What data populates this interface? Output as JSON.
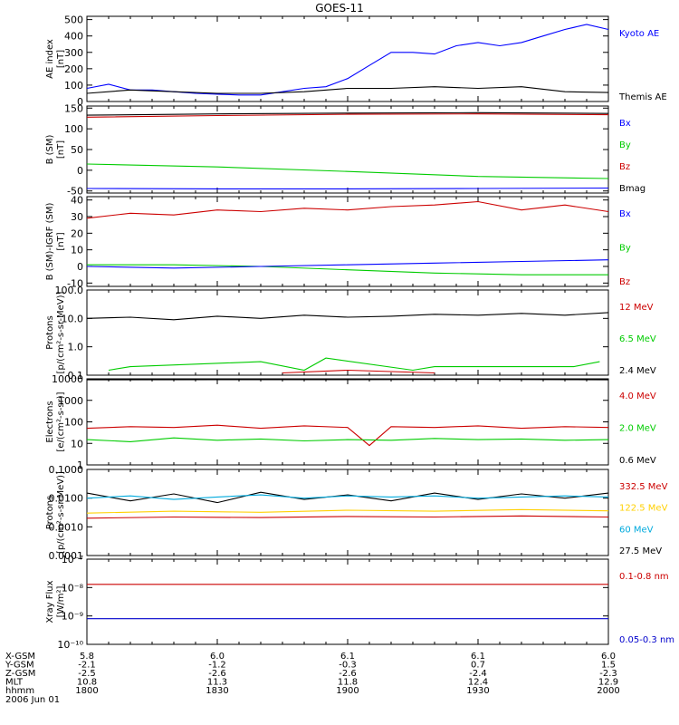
{
  "title": "GOES-11",
  "time_axis": {
    "start_min": 1800,
    "end_min": 2000,
    "rows": [
      {
        "label": "X-GSM",
        "values": [
          "5.8",
          "6.0",
          "6.1",
          "6.1",
          "6.0"
        ]
      },
      {
        "label": "Y-GSM",
        "values": [
          "-2.1",
          "-1.2",
          "-0.3",
          "0.7",
          "1.5"
        ]
      },
      {
        "label": "Z-GSM",
        "values": [
          "-2.5",
          "-2.6",
          "-2.6",
          "-2.4",
          "-2.3"
        ]
      },
      {
        "label": "MLT",
        "values": [
          "10.8",
          "11.3",
          "11.8",
          "12.4",
          "12.9"
        ]
      },
      {
        "label": "hhmm",
        "values": [
          "1800",
          "1830",
          "1900",
          "1930",
          "2000"
        ]
      }
    ],
    "date": "2006 Jun 01"
  },
  "chart_data": [
    {
      "type": "line",
      "ylabel": [
        "AE index",
        "[nT]"
      ],
      "yscale": "linear",
      "ylim": [
        0,
        520
      ],
      "yticks": [
        {
          "v": 0,
          "t": "0"
        },
        {
          "v": 100,
          "t": "100"
        },
        {
          "v": 200,
          "t": "200"
        },
        {
          "v": 300,
          "t": "300"
        },
        {
          "v": 400,
          "t": "400"
        },
        {
          "v": 500,
          "t": "500"
        }
      ],
      "legend": [
        {
          "name": "Kyoto AE",
          "color": "#0000ff"
        },
        {
          "name": "Themis AE",
          "color": "#000000"
        }
      ],
      "series": [
        {
          "name": "Kyoto AE",
          "color": "#0000ff",
          "x": [
            0,
            5,
            10,
            15,
            20,
            25,
            30,
            35,
            40,
            45,
            50,
            55,
            60,
            65,
            70,
            75,
            80,
            85,
            90,
            95,
            100,
            105,
            110,
            115,
            120
          ],
          "y": [
            80,
            105,
            70,
            70,
            60,
            50,
            45,
            40,
            40,
            60,
            80,
            90,
            140,
            220,
            300,
            300,
            290,
            340,
            360,
            340,
            360,
            400,
            440,
            470,
            440
          ]
        },
        {
          "name": "Themis AE",
          "color": "#000000",
          "x": [
            0,
            10,
            20,
            30,
            40,
            50,
            60,
            70,
            80,
            90,
            100,
            110,
            120
          ],
          "y": [
            50,
            70,
            60,
            50,
            50,
            60,
            80,
            80,
            90,
            80,
            90,
            60,
            55
          ]
        }
      ]
    },
    {
      "type": "line",
      "ylabel": [
        "B (SM)",
        "[nT]"
      ],
      "yscale": "linear",
      "ylim": [
        -55,
        155
      ],
      "yticks": [
        {
          "v": -50,
          "t": "-50"
        },
        {
          "v": 0,
          "t": "0"
        },
        {
          "v": 50,
          "t": "50"
        },
        {
          "v": 100,
          "t": "100"
        },
        {
          "v": 150,
          "t": "150"
        }
      ],
      "legend": [
        {
          "name": "Bx",
          "color": "#0000ff"
        },
        {
          "name": "By",
          "color": "#00cc00"
        },
        {
          "name": "Bz",
          "color": "#cc0000"
        },
        {
          "name": "Bmag",
          "color": "#000000"
        }
      ],
      "series": [
        {
          "name": "Bmag",
          "color": "#000000",
          "x": [
            0,
            30,
            60,
            90,
            120
          ],
          "y": [
            133,
            136,
            138,
            139,
            137
          ]
        },
        {
          "name": "Bz",
          "color": "#cc0000",
          "x": [
            0,
            30,
            60,
            90,
            120
          ],
          "y": [
            128,
            132,
            135,
            136,
            134
          ]
        },
        {
          "name": "By",
          "color": "#00cc00",
          "x": [
            0,
            30,
            60,
            90,
            120
          ],
          "y": [
            15,
            8,
            -3,
            -15,
            -20
          ]
        },
        {
          "name": "Bx",
          "color": "#0000ff",
          "x": [
            0,
            30,
            60,
            90,
            120
          ],
          "y": [
            -44,
            -45,
            -45,
            -44,
            -43
          ]
        }
      ]
    },
    {
      "type": "line",
      "ylabel": [
        "B (SM)-IGRF (SM)",
        "[nT]"
      ],
      "yscale": "linear",
      "ylim": [
        -12,
        42
      ],
      "yticks": [
        {
          "v": -10,
          "t": "-10"
        },
        {
          "v": 0,
          "t": "0"
        },
        {
          "v": 10,
          "t": "10"
        },
        {
          "v": 20,
          "t": "20"
        },
        {
          "v": 30,
          "t": "30"
        },
        {
          "v": 40,
          "t": "40"
        }
      ],
      "legend": [
        {
          "name": "Bx",
          "color": "#0000ff"
        },
        {
          "name": "By",
          "color": "#00cc00"
        },
        {
          "name": "Bz",
          "color": "#cc0000"
        }
      ],
      "series": [
        {
          "name": "Bz",
          "color": "#cc0000",
          "x": [
            0,
            10,
            20,
            30,
            40,
            50,
            60,
            70,
            80,
            90,
            100,
            110,
            120
          ],
          "y": [
            29,
            32,
            31,
            34,
            33,
            35,
            34,
            36,
            37,
            39,
            34,
            37,
            33
          ]
        },
        {
          "name": "By",
          "color": "#00cc00",
          "x": [
            0,
            20,
            40,
            60,
            80,
            100,
            120
          ],
          "y": [
            1,
            1,
            0,
            -2,
            -4,
            -5,
            -5
          ]
        },
        {
          "name": "Bx",
          "color": "#0000ff",
          "x": [
            0,
            20,
            40,
            60,
            80,
            100,
            120
          ],
          "y": [
            0,
            -1,
            0,
            1,
            2,
            3,
            4
          ]
        }
      ]
    },
    {
      "type": "line",
      "ylabel": [
        "Protons",
        "[p/(cm²-s-sr-MeV)]"
      ],
      "yscale": "log",
      "ylim": [
        0.1,
        100
      ],
      "yticks": [
        {
          "v": 0.1,
          "t": "0.1"
        },
        {
          "v": 1,
          "t": "1.0"
        },
        {
          "v": 10,
          "t": "10.0"
        },
        {
          "v": 100,
          "t": "100.0"
        }
      ],
      "legend": [
        {
          "name": "12 MeV",
          "color": "#cc0000"
        },
        {
          "name": "6.5 MeV",
          "color": "#00cc00"
        },
        {
          "name": "2.4 MeV",
          "color": "#000000"
        }
      ],
      "series": [
        {
          "name": "2.4 MeV",
          "color": "#000000",
          "x": [
            0,
            10,
            20,
            30,
            40,
            50,
            60,
            70,
            80,
            90,
            100,
            110,
            120
          ],
          "y": [
            10,
            11,
            9,
            12,
            10,
            13,
            11,
            12,
            14,
            13,
            15,
            13,
            16
          ]
        },
        {
          "name": "6.5 MeV",
          "color": "#00cc00",
          "x": [
            5,
            10,
            40,
            50,
            55,
            75,
            80,
            112,
            118
          ],
          "y": [
            0.15,
            0.2,
            0.3,
            0.15,
            0.4,
            0.15,
            0.2,
            0.2,
            0.3
          ]
        },
        {
          "name": "12 MeV",
          "color": "#cc0000",
          "x": [
            45,
            60,
            80
          ],
          "y": [
            0.12,
            0.15,
            0.12
          ]
        }
      ]
    },
    {
      "type": "line",
      "ylabel": [
        "Electrons",
        "[e/(cm²-s-sr)]"
      ],
      "yscale": "log",
      "ylim": [
        1,
        10000
      ],
      "yticks": [
        {
          "v": 1,
          "t": "1"
        },
        {
          "v": 10,
          "t": "10"
        },
        {
          "v": 100,
          "t": "100"
        },
        {
          "v": 1000,
          "t": "1000"
        },
        {
          "v": 10000,
          "t": "10000"
        }
      ],
      "legend": [
        {
          "name": "4.0 MeV",
          "color": "#cc0000"
        },
        {
          "name": "2.0 MeV",
          "color": "#00cc00"
        },
        {
          "name": "0.6 MeV",
          "color": "#000000"
        }
      ],
      "series": [
        {
          "name": "0.6 MeV",
          "color": "#000000",
          "x": [
            0,
            30,
            60,
            90,
            120
          ],
          "y": [
            9000,
            9200,
            9100,
            9300,
            9000
          ]
        },
        {
          "name": "4.0 MeV",
          "color": "#cc0000",
          "x": [
            0,
            10,
            20,
            30,
            40,
            50,
            60,
            65,
            70,
            80,
            90,
            100,
            110,
            120
          ],
          "y": [
            50,
            60,
            55,
            70,
            50,
            65,
            55,
            8,
            60,
            55,
            65,
            50,
            60,
            55
          ]
        },
        {
          "name": "2.0 MeV",
          "color": "#00cc00",
          "x": [
            0,
            10,
            20,
            30,
            40,
            50,
            60,
            70,
            80,
            90,
            100,
            110,
            120
          ],
          "y": [
            15,
            12,
            18,
            14,
            16,
            13,
            15,
            14,
            17,
            15,
            16,
            14,
            15
          ]
        }
      ]
    },
    {
      "type": "line",
      "ylabel": [
        "Protons",
        "[p/(cm²-s-sr-MeV)]"
      ],
      "yscale": "log",
      "ylim": [
        0.0001,
        0.1
      ],
      "yticks": [
        {
          "v": 0.0001,
          "t": "0.0001"
        },
        {
          "v": 0.001,
          "t": "0.0010"
        },
        {
          "v": 0.01,
          "t": "0.0100"
        },
        {
          "v": 0.1,
          "t": "0.1000"
        }
      ],
      "legend": [
        {
          "name": "332.5 MeV",
          "color": "#cc0000"
        },
        {
          "name": "122.5 MeV",
          "color": "#ffd000"
        },
        {
          "name": "60 MeV",
          "color": "#00aadd"
        },
        {
          "name": "27.5 MeV",
          "color": "#000000"
        }
      ],
      "series": [
        {
          "name": "27.5 MeV",
          "color": "#000000",
          "x": [
            0,
            10,
            20,
            30,
            40,
            50,
            60,
            70,
            80,
            90,
            100,
            110,
            120
          ],
          "y": [
            0.015,
            0.008,
            0.014,
            0.007,
            0.016,
            0.009,
            0.013,
            0.008,
            0.015,
            0.009,
            0.014,
            0.01,
            0.015
          ]
        },
        {
          "name": "60 MeV",
          "color": "#00aadd",
          "x": [
            0,
            10,
            20,
            30,
            40,
            50,
            60,
            70,
            80,
            90,
            100,
            110,
            120
          ],
          "y": [
            0.01,
            0.012,
            0.009,
            0.011,
            0.013,
            0.01,
            0.012,
            0.011,
            0.012,
            0.01,
            0.011,
            0.012,
            0.011
          ]
        },
        {
          "name": "122.5 MeV",
          "color": "#ffd000",
          "x": [
            0,
            20,
            40,
            60,
            80,
            100,
            120
          ],
          "y": [
            0.003,
            0.0035,
            0.0032,
            0.0038,
            0.0035,
            0.004,
            0.0036
          ]
        },
        {
          "name": "332.5 MeV",
          "color": "#cc0000",
          "x": [
            0,
            20,
            40,
            60,
            80,
            100,
            120
          ],
          "y": [
            0.002,
            0.0022,
            0.0021,
            0.0023,
            0.0022,
            0.0024,
            0.0022
          ]
        }
      ]
    },
    {
      "type": "line",
      "ylabel": [
        "Xray Flux",
        "[W/m²]"
      ],
      "yscale": "log",
      "ylim": [
        1e-10,
        1e-07
      ],
      "yticks": [
        {
          "v": 1e-10,
          "t": "10⁻¹⁰"
        },
        {
          "v": 1e-09,
          "t": "10⁻⁹"
        },
        {
          "v": 1e-08,
          "t": "10⁻⁸"
        },
        {
          "v": 1e-07,
          "t": "10⁻⁷"
        }
      ],
      "legend": [
        {
          "name": "0.1-0.8 nm",
          "color": "#cc0000"
        },
        {
          "name": "0.05-0.3 nm",
          "color": "#0000cc"
        }
      ],
      "series": [
        {
          "name": "0.1-0.8 nm",
          "color": "#cc0000",
          "x": [
            0,
            120
          ],
          "y": [
            1.3e-08,
            1.3e-08
          ]
        },
        {
          "name": "0.05-0.3 nm",
          "color": "#0000cc",
          "x": [
            0,
            120
          ],
          "y": [
            8e-10,
            8e-10
          ]
        }
      ]
    }
  ]
}
